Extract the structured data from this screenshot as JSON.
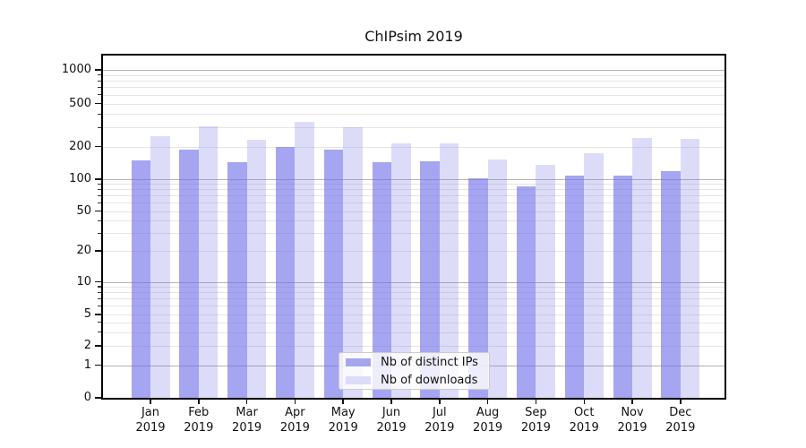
{
  "title": "ChIPsim 2019",
  "chart_data": {
    "type": "bar",
    "title": "ChIPsim 2019",
    "categories": [
      "Jan 2019",
      "Feb 2019",
      "Mar 2019",
      "Apr 2019",
      "May 2019",
      "Jun 2019",
      "Jul 2019",
      "Aug 2019",
      "Sep 2019",
      "Oct 2019",
      "Nov 2019",
      "Dec 2019"
    ],
    "series": [
      {
        "name": "Nb of distinct IPs",
        "values": [
          150,
          188,
          143,
          200,
          186,
          144,
          145,
          102,
          85,
          108,
          109,
          119
        ],
        "color_rgba": "rgba(110,110,232,0.62)",
        "color_hex": "#a5a5f0"
      },
      {
        "name": "Nb of downloads",
        "values": [
          250,
          306,
          229,
          339,
          303,
          214,
          215,
          152,
          136,
          173,
          239,
          234
        ],
        "color_rgba": "rgba(110,110,232,0.24)",
        "color_hex": "#dcdcf9"
      }
    ],
    "xlabel": "",
    "ylabel": "",
    "yscale": "symlog",
    "ylim": [
      0,
      1400
    ],
    "yticks_labeled": [
      0,
      1,
      2,
      5,
      10,
      20,
      50,
      100,
      200,
      500,
      1000
    ],
    "grid": true,
    "grid_major_values": [
      1,
      10,
      100,
      1000
    ],
    "grid_minor_values": [
      2,
      3,
      4,
      5,
      6,
      7,
      8,
      9,
      20,
      30,
      40,
      50,
      60,
      70,
      80,
      90,
      200,
      300,
      400,
      500,
      600,
      700,
      800,
      900
    ],
    "legend_position": "lower center",
    "colors": {
      "grid_major": "#b3b3b3",
      "grid_minor": "#e5e5e5",
      "axis": "#000000",
      "text": "#111111",
      "legend_border": "#cccccc"
    }
  }
}
